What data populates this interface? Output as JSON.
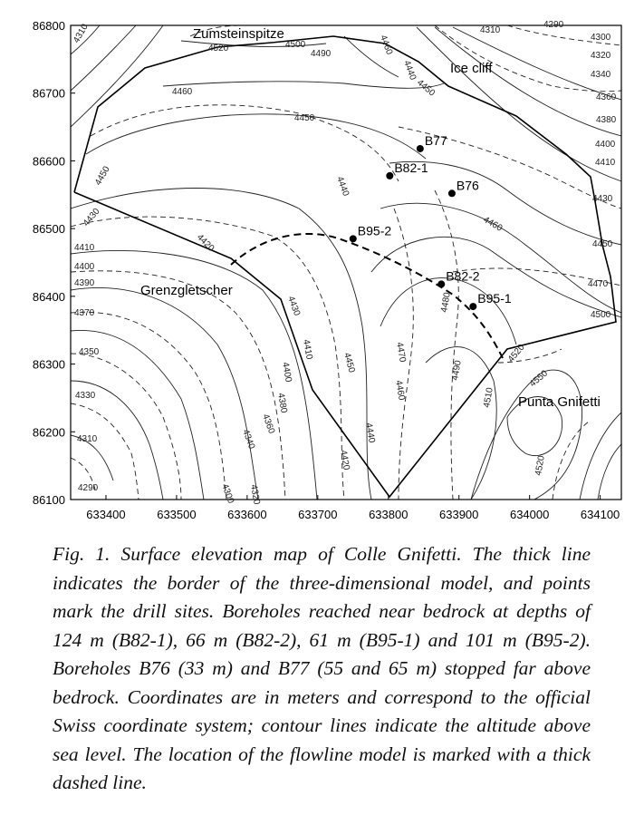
{
  "map": {
    "x_ticks": [
      "633400",
      "633500",
      "633600",
      "633700",
      "633800",
      "633900",
      "634000",
      "634100"
    ],
    "y_ticks": [
      "86800",
      "86700",
      "86600",
      "86500",
      "86400",
      "86300",
      "86200",
      "86100"
    ],
    "places": {
      "zumsteinspitze": "Zumsteinspitze",
      "ice_cliff": "Ice cliff",
      "grenzgletscher": "Grenzgletscher",
      "punta_gnifetti": "Punta Gnifetti"
    },
    "drill_sites": [
      {
        "name": "B77",
        "x": 633845,
        "y": 86618
      },
      {
        "name": "B82-1",
        "x": 633802,
        "y": 86578
      },
      {
        "name": "B76",
        "x": 633890,
        "y": 86552
      },
      {
        "name": "B95-2",
        "x": 633750,
        "y": 86485
      },
      {
        "name": "B82-2",
        "x": 633875,
        "y": 86418
      },
      {
        "name": "B95-1",
        "x": 633920,
        "y": 86385
      }
    ],
    "contour_labels": {
      "c4520": "4520",
      "c4500": "4500",
      "c4490": "4490",
      "c4460": "4460",
      "c4440": "4440",
      "c4420": "4420",
      "c4390": "4390",
      "c4380": "4380",
      "c4350": "4350",
      "c4330": "4330",
      "c4310": "4310",
      "c4320": "4320",
      "c4300": "4300",
      "c4290": "4290",
      "c4340": "4340",
      "c4360": "4360",
      "c4400": "4400",
      "c4410": "4410",
      "c4430": "4430",
      "c4450": "4450",
      "c4470": "4470",
      "c4480": "4480",
      "c4510": "4510",
      "c4550": "4550",
      "c4370": "4370"
    }
  },
  "caption": "Fig. 1. Surface elevation map of Colle Gnifetti. The thick line indicates the border of the three-dimensional model, and points mark the drill sites. Boreholes reached near bedrock at depths of 124 m (B82-1), 66 m (B82-2), 61 m (B95-1) and 101 m (B95-2). Boreholes B76 (33 m) and B77 (55 and 65 m) stopped far above bedrock. Coordinates are in meters and correspond to the official Swiss coordinate system; contour lines indicate the altitude above sea level. The location of the flowline model is marked with a thick dashed line."
}
